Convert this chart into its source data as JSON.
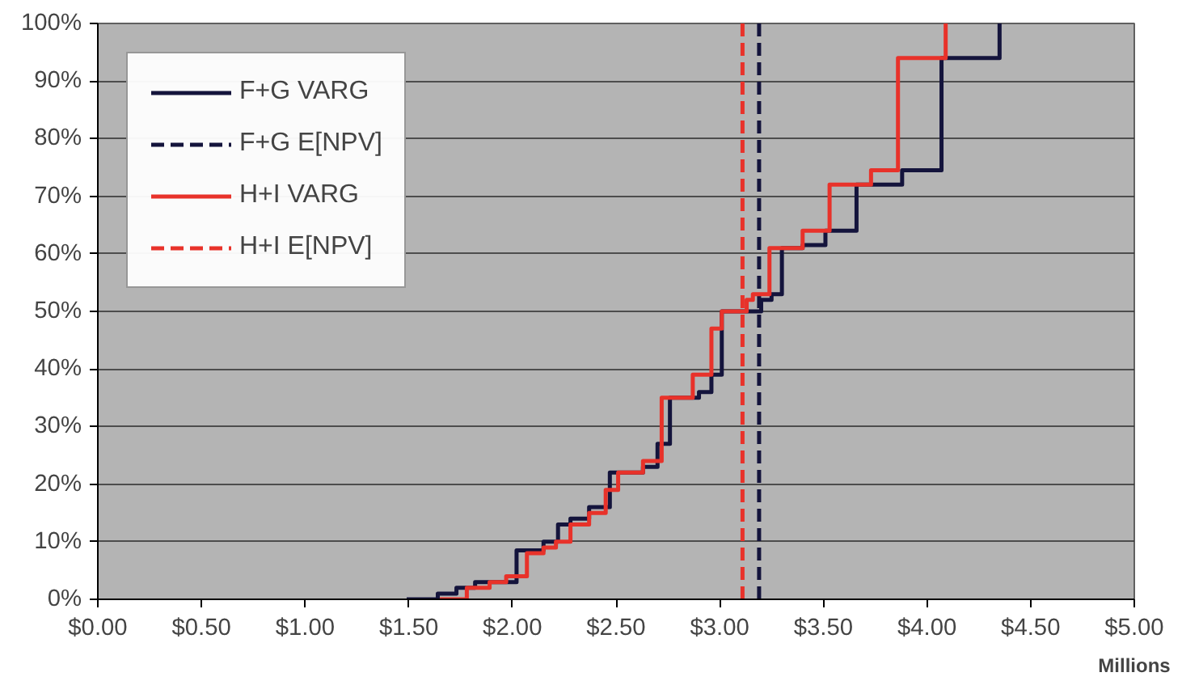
{
  "chart_data": {
    "type": "step",
    "xlabel": "Millions",
    "series": [
      {
        "name": "F+G VARG",
        "color": "#14143c",
        "x": [
          1.49,
          1.64,
          1.73,
          1.82,
          2.02,
          2.15,
          2.22,
          2.28,
          2.37,
          2.47,
          2.63,
          2.7,
          2.76,
          2.9,
          2.96,
          3.01,
          3.2,
          3.25,
          3.3,
          3.4,
          3.51,
          3.66,
          3.88,
          4.07,
          4.35
        ],
        "values": [
          0,
          1,
          2,
          3,
          8.5,
          10,
          13,
          14,
          16,
          22,
          23,
          27,
          35,
          36,
          39,
          50,
          52,
          53,
          61,
          61.5,
          64,
          72,
          74.5,
          94,
          100
        ]
      },
      {
        "name": "F+G E[NPV]",
        "type": "line",
        "line_style": "dashed",
        "color": "#14143c",
        "x": [
          3.19,
          3.19
        ],
        "values": [
          0,
          100
        ]
      },
      {
        "name": "H+I VARG",
        "color": "#e8322a",
        "x": [
          1.65,
          1.78,
          1.89,
          1.97,
          2.07,
          2.15,
          2.21,
          2.28,
          2.37,
          2.45,
          2.51,
          2.63,
          2.72,
          2.87,
          2.96,
          3.01,
          3.13,
          3.16,
          3.24,
          3.4,
          3.53,
          3.73,
          3.86,
          4.09
        ],
        "values": [
          0,
          2,
          3,
          4,
          8,
          9,
          10,
          13,
          15,
          19,
          22,
          24,
          35,
          39,
          47,
          50,
          52,
          53,
          61,
          64,
          72,
          74.5,
          94,
          100
        ]
      },
      {
        "name": "H+I E[NPV]",
        "type": "line",
        "line_style": "dashed",
        "color": "#e8322a",
        "x": [
          3.11,
          3.11
        ],
        "values": [
          0,
          100
        ]
      }
    ],
    "xlim": [
      0,
      5
    ],
    "ylim": [
      0,
      100
    ],
    "xticks": [
      {
        "value": 0,
        "label": "$0.00"
      },
      {
        "value": 0.5,
        "label": "$0.50"
      },
      {
        "value": 1,
        "label": "$1.00"
      },
      {
        "value": 1.5,
        "label": "$1.50"
      },
      {
        "value": 2,
        "label": "$2.00"
      },
      {
        "value": 2.5,
        "label": "$2.50"
      },
      {
        "value": 3,
        "label": "$3.00"
      },
      {
        "value": 3.5,
        "label": "$3.50"
      },
      {
        "value": 4,
        "label": "$4.00"
      },
      {
        "value": 4.5,
        "label": "$4.50"
      },
      {
        "value": 5,
        "label": "$5.00"
      }
    ],
    "yticks": [
      {
        "value": 0,
        "label": "0%"
      },
      {
        "value": 10,
        "label": "10%"
      },
      {
        "value": 20,
        "label": "20%"
      },
      {
        "value": 30,
        "label": "30%"
      },
      {
        "value": 40,
        "label": "40%"
      },
      {
        "value": 50,
        "label": "50%"
      },
      {
        "value": 60,
        "label": "60%"
      },
      {
        "value": 70,
        "label": "70%"
      },
      {
        "value": 80,
        "label": "80%"
      },
      {
        "value": 90,
        "label": "90%"
      },
      {
        "value": 100,
        "label": "100%"
      }
    ],
    "grid": "y",
    "legend": "top left"
  }
}
